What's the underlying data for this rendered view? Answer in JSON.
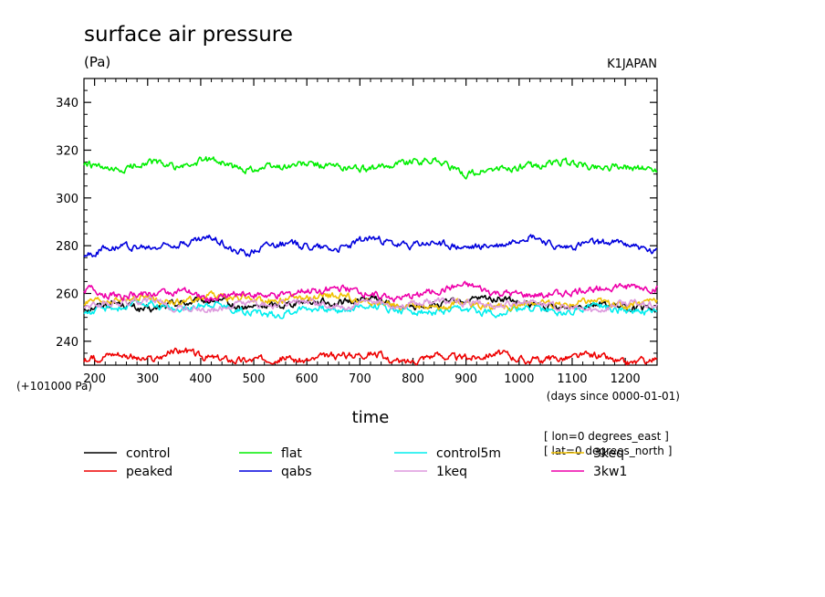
{
  "chart_data": {
    "type": "line",
    "title": "surface air pressure",
    "units": "(Pa)",
    "dataset_label": "K1JAPAN",
    "xlabel": "time",
    "x_units": "(days since 0000-01-01)",
    "y_offset_note": "(+101000 Pa)",
    "xlim": [
      180,
      1260
    ],
    "ylim": [
      230,
      350
    ],
    "x_ticks": [
      200,
      300,
      400,
      500,
      600,
      700,
      800,
      900,
      1000,
      1100,
      1200
    ],
    "y_ticks": [
      240,
      260,
      280,
      300,
      320,
      340
    ],
    "x": [
      180,
      240,
      300,
      360,
      420,
      480,
      540,
      600,
      660,
      720,
      780,
      840,
      900,
      960,
      1020,
      1080,
      1140,
      1200,
      1260
    ],
    "series": [
      {
        "name": "control",
        "color": "#000000",
        "values": [
          254,
          256,
          253,
          256,
          257,
          254,
          255,
          257,
          256,
          258,
          254,
          255,
          257,
          258,
          255,
          254,
          256,
          254,
          253
        ]
      },
      {
        "name": "flat",
        "color": "#00ee00",
        "values": [
          314,
          311,
          315,
          313,
          316,
          312,
          313,
          314,
          313,
          312,
          315,
          316,
          310,
          312,
          313,
          315,
          313,
          313,
          312
        ]
      },
      {
        "name": "control5m",
        "color": "#00eeee",
        "values": [
          252,
          254,
          256,
          253,
          256,
          253,
          251,
          254,
          253,
          255,
          253,
          252,
          253,
          252,
          254,
          252,
          255,
          253,
          252
        ]
      },
      {
        "name": "3keq",
        "color": "#f0c000",
        "values": [
          256,
          257,
          258,
          256,
          259,
          258,
          257,
          258,
          259,
          256,
          255,
          254,
          256,
          254,
          256,
          255,
          257,
          255,
          258
        ]
      },
      {
        "name": "peaked",
        "color": "#ee0000",
        "values": [
          232,
          235,
          232,
          236,
          233,
          232,
          233,
          232,
          234,
          235,
          231,
          234,
          233,
          235,
          232,
          233,
          234,
          231,
          232
        ]
      },
      {
        "name": "qabs",
        "color": "#0000dd",
        "values": [
          276,
          280,
          279,
          281,
          283,
          277,
          281,
          280,
          279,
          283,
          280,
          281,
          279,
          280,
          284,
          279,
          281,
          281,
          277
        ]
      },
      {
        "name": "1keq",
        "color": "#dd99dd",
        "values": [
          255,
          256,
          257,
          254,
          253,
          256,
          255,
          257,
          254,
          256,
          255,
          257,
          256,
          255,
          257,
          254,
          253,
          256,
          255
        ]
      },
      {
        "name": "3kw1",
        "color": "#ee00aa",
        "values": [
          262,
          259,
          260,
          261,
          258,
          260,
          259,
          261,
          262,
          260,
          258,
          261,
          263,
          260,
          259,
          260,
          262,
          263,
          262
        ]
      }
    ]
  },
  "axis_annotations": {
    "lon": "[ lon=0 degrees_east ]",
    "lat": "[ lat=0 degrees_north ]"
  }
}
